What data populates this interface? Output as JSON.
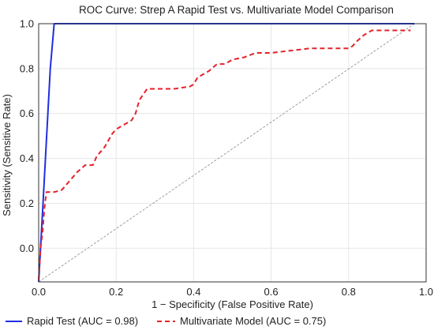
{
  "chart_data": {
    "type": "line",
    "title": "ROC Curve: Strep A Rapid Test vs. Multivariate Model Comparison",
    "xlabel": "1 − Specificity (False Positive Rate)",
    "ylabel": "Sensitivity (Sensitive Rate)",
    "xlim": [
      0.0,
      1.0
    ],
    "ylim": [
      -0.15,
      1.0
    ],
    "xticks": [
      "0.0",
      "0.2",
      "0.4",
      "0.6",
      "0.8",
      "1.0"
    ],
    "yticks": [
      "0.0",
      "0.2",
      "0.4",
      "0.6",
      "0.8",
      "1.0"
    ],
    "grid": true,
    "legend_position": "bottom",
    "series": [
      {
        "name": "Rapid Test (AUC = 0.98)",
        "style": "solid",
        "color": "#1f2fe0",
        "x": [
          0.0,
          0.01,
          0.02,
          0.03,
          0.04,
          0.1,
          0.3,
          0.6,
          0.9,
          0.96,
          0.97
        ],
        "y": [
          -0.15,
          0.16,
          0.48,
          0.8,
          1.0,
          1.0,
          1.0,
          1.0,
          1.0,
          1.0,
          1.0
        ]
      },
      {
        "name": "Multivariate Model (AUC = 0.75)",
        "style": "dashed",
        "color": "#e5222a",
        "x": [
          0.0,
          0.005,
          0.01,
          0.015,
          0.02,
          0.04,
          0.06,
          0.08,
          0.1,
          0.12,
          0.14,
          0.15,
          0.16,
          0.17,
          0.18,
          0.19,
          0.2,
          0.22,
          0.24,
          0.25,
          0.26,
          0.28,
          0.29,
          0.3,
          0.35,
          0.39,
          0.4,
          0.41,
          0.42,
          0.44,
          0.46,
          0.48,
          0.5,
          0.53,
          0.56,
          0.58,
          0.6,
          0.65,
          0.7,
          0.75,
          0.8,
          0.81,
          0.82,
          0.84,
          0.86,
          0.96
        ],
        "y": [
          -0.14,
          0.0,
          0.07,
          0.18,
          0.25,
          0.25,
          0.26,
          0.3,
          0.34,
          0.37,
          0.37,
          0.41,
          0.43,
          0.45,
          0.48,
          0.51,
          0.53,
          0.55,
          0.57,
          0.6,
          0.66,
          0.71,
          0.71,
          0.71,
          0.71,
          0.72,
          0.73,
          0.76,
          0.77,
          0.79,
          0.82,
          0.82,
          0.84,
          0.85,
          0.87,
          0.87,
          0.87,
          0.88,
          0.89,
          0.89,
          0.89,
          0.9,
          0.92,
          0.95,
          0.97,
          0.97
        ]
      },
      {
        "name": "",
        "style": "dotted-reference",
        "color": "#888888",
        "x": [
          0.0,
          0.97
        ],
        "y": [
          -0.15,
          1.0
        ]
      }
    ]
  }
}
